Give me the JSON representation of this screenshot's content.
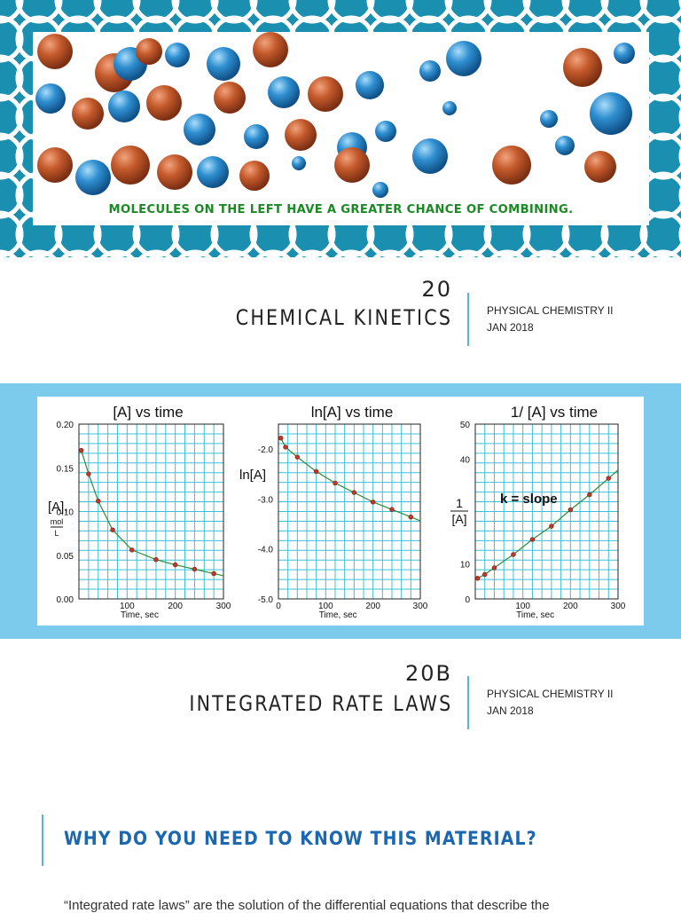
{
  "banner": {
    "caption": "MOLECULES ON THE LEFT HAVE A GREATER CHANCE OF COMBINING.",
    "colors": {
      "frame": "#1a8fb0",
      "red_molecule": "#b8502a",
      "blue_molecule": "#2a86c4",
      "caption": "#1c8a24"
    }
  },
  "slide1": {
    "number": "20",
    "title": "CHEMICAL KINETICS",
    "course": "PHYSICAL CHEMISTRY II",
    "date": "JAN 2018"
  },
  "slide3": {
    "number": "20B",
    "title": "INTEGRATED RATE LAWS",
    "course": "PHYSICAL CHEMISTRY II",
    "date": "JAN 2018"
  },
  "slide4": {
    "heading": "WHY DO YOU NEED TO KNOW THIS MATERIAL?",
    "body": "“Integrated rate laws” are the solution of the differential equations that describe the"
  },
  "chart_data": [
    {
      "type": "scatter",
      "title": "[A]  vs time",
      "xlabel": "Time, sec",
      "ylabel": "[A],",
      "ylabel_unit_num": "mol",
      "ylabel_unit_den": "L",
      "xlim": [
        0,
        300
      ],
      "ylim": [
        0,
        0.2
      ],
      "xticks": [
        "100",
        "200",
        "300"
      ],
      "yticks": [
        "0.00",
        "0.05",
        "0.10",
        "0.15",
        "0.20"
      ],
      "ytick_values": [
        0,
        0.05,
        0.1,
        0.15,
        0.2
      ],
      "annotation": "",
      "x": [
        5,
        20,
        40,
        70,
        110,
        160,
        200,
        240,
        280
      ],
      "y": [
        0.17,
        0.143,
        0.112,
        0.079,
        0.056,
        0.045,
        0.039,
        0.034,
        0.029
      ],
      "grid": true,
      "colors": {
        "curve": "#2e8b3a",
        "point": "#c0392b",
        "grid": "#3cc0d8"
      }
    },
    {
      "type": "scatter",
      "title": "ln[A] vs time",
      "xlabel": "Time, sec",
      "ylabel": "ln[A]",
      "xlim": [
        0,
        300
      ],
      "ylim": [
        -5.0,
        -1.5
      ],
      "xticks": [
        "0",
        "100",
        "200",
        "300"
      ],
      "yticks": [
        "-2.0",
        "-3.0",
        "-4.0",
        "-5.0"
      ],
      "ytick_values": [
        -2.0,
        -3.0,
        -4.0,
        -5.0
      ],
      "annotation": "",
      "x": [
        5,
        15,
        40,
        80,
        120,
        160,
        200,
        240,
        280
      ],
      "y": [
        -1.78,
        -1.96,
        -2.16,
        -2.45,
        -2.68,
        -2.87,
        -3.06,
        -3.21,
        -3.36
      ],
      "grid": true,
      "colors": {
        "curve": "#2e8b3a",
        "point": "#c0392b",
        "grid": "#3cc0d8"
      }
    },
    {
      "type": "scatter",
      "title": "1/ [A] vs time",
      "xlabel": "Time, sec",
      "ylabel": "1",
      "ylabel_den": "[A]",
      "xlim": [
        0,
        300
      ],
      "ylim": [
        0,
        50
      ],
      "xticks": [
        "100",
        "200",
        "300"
      ],
      "yticks": [
        "0",
        "10",
        "40",
        "50"
      ],
      "ytick_values": [
        0,
        10,
        40,
        50
      ],
      "annotation": "k = slope",
      "x": [
        5,
        20,
        40,
        80,
        120,
        160,
        200,
        240,
        280
      ],
      "y": [
        5.9,
        7.0,
        8.9,
        12.7,
        17.0,
        20.8,
        25.5,
        29.8,
        34.5
      ],
      "grid": true,
      "colors": {
        "curve": "#2e8b3a",
        "point": "#c0392b",
        "grid": "#3cc0d8"
      }
    }
  ]
}
